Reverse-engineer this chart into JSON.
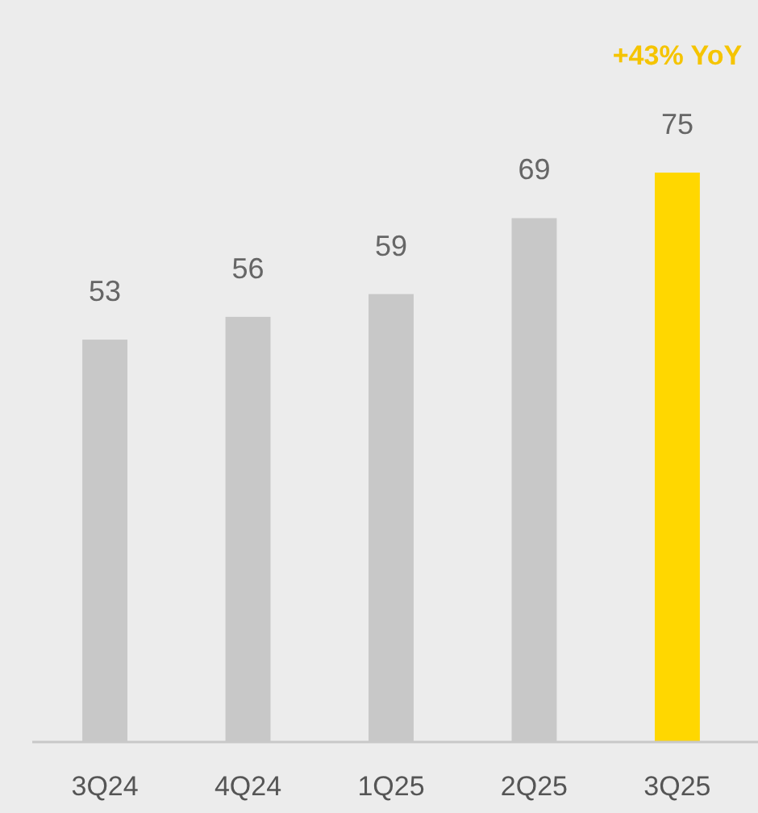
{
  "chart_data": {
    "type": "bar",
    "categories": [
      "3Q24",
      "4Q24",
      "1Q25",
      "2Q25",
      "3Q25"
    ],
    "values": [
      53,
      56,
      59,
      69,
      75
    ],
    "colors": [
      "#c8c8c8",
      "#c8c8c8",
      "#c8c8c8",
      "#c8c8c8",
      "#ffd700"
    ],
    "data_labels": true,
    "annotations": [
      "+43% YoY"
    ]
  }
}
